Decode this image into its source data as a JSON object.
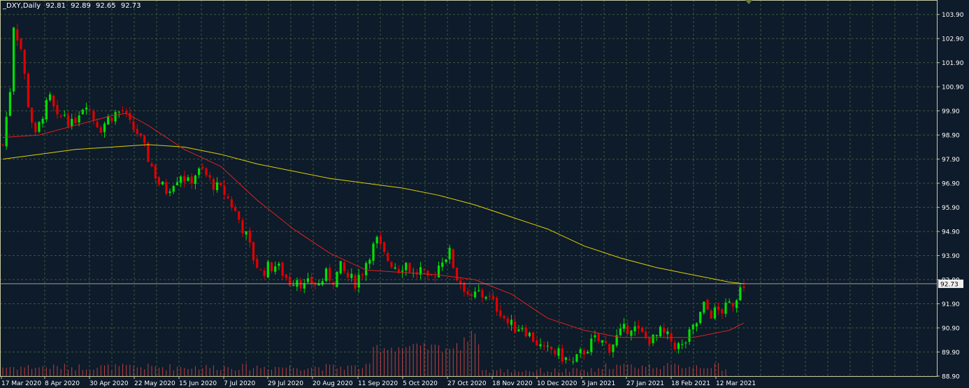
{
  "chart_data": {
    "type": "candlestick",
    "symbol": "_DXY",
    "timeframe": "Daily",
    "ohlc_last": {
      "open": "92.81",
      "high": "92.89",
      "low": "92.65",
      "close": "92.73"
    },
    "current_price_label": "92.73",
    "y_ticks": [
      "103.90",
      "102.90",
      "101.90",
      "100.90",
      "99.90",
      "98.90",
      "97.90",
      "96.90",
      "95.90",
      "94.90",
      "93.90",
      "92.90",
      "91.90",
      "90.90",
      "89.90",
      "88.90"
    ],
    "ylim": [
      88.9,
      104.5
    ],
    "x_tick_labels": [
      "17 Mar 2020",
      "8 Apr 2020",
      "30 Apr 2020",
      "22 May 2020",
      "15 Jun 2020",
      "7 Jul 2020",
      "29 Jul 2020",
      "20 Aug 2020",
      "11 Sep 2020",
      "5 Oct 2020",
      "27 Oct 2020",
      "18 Nov 2020",
      "10 Dec 2020",
      "5 Jan 2021",
      "27 Jan 2021",
      "18 Feb 2021",
      "12 Mar 2021"
    ],
    "close_path": [
      [
        0,
        98.5
      ],
      [
        2,
        100.8
      ],
      [
        3,
        103.5
      ],
      [
        5,
        102.5
      ],
      [
        7,
        100.2
      ],
      [
        9,
        98.8
      ],
      [
        11,
        99.8
      ],
      [
        13,
        100.4
      ],
      [
        15,
        99.5
      ],
      [
        17,
        99.8
      ],
      [
        19,
        99.3
      ],
      [
        21,
        99.9
      ],
      [
        23,
        100.3
      ],
      [
        25,
        99.6
      ],
      [
        27,
        99.2
      ],
      [
        29,
        99.6
      ],
      [
        31,
        99.8
      ],
      [
        33,
        99.9
      ],
      [
        35,
        99.3
      ],
      [
        37,
        99.0
      ],
      [
        39,
        98.3
      ],
      [
        41,
        97.6
      ],
      [
        43,
        96.9
      ],
      [
        45,
        96.6
      ],
      [
        47,
        97.0
      ],
      [
        49,
        97.3
      ],
      [
        51,
        96.9
      ],
      [
        53,
        97.3
      ],
      [
        55,
        97.4
      ],
      [
        57,
        97.0
      ],
      [
        59,
        96.7
      ],
      [
        61,
        96.5
      ],
      [
        63,
        96.0
      ],
      [
        65,
        95.4
      ],
      [
        67,
        94.7
      ],
      [
        69,
        93.8
      ],
      [
        71,
        93.2
      ],
      [
        73,
        93.4
      ],
      [
        75,
        93.5
      ],
      [
        77,
        93.2
      ],
      [
        79,
        92.8
      ],
      [
        81,
        93.0
      ],
      [
        83,
        92.6
      ],
      [
        85,
        92.8
      ],
      [
        87,
        92.7
      ],
      [
        89,
        93.1
      ],
      [
        91,
        92.9
      ],
      [
        93,
        93.4
      ],
      [
        95,
        93.0
      ],
      [
        97,
        92.8
      ],
      [
        99,
        93.3
      ],
      [
        101,
        94.0
      ],
      [
        103,
        94.5
      ],
      [
        105,
        93.9
      ],
      [
        107,
        93.6
      ],
      [
        109,
        93.4
      ],
      [
        111,
        93.6
      ],
      [
        113,
        93.1
      ],
      [
        115,
        93.3
      ],
      [
        117,
        92.8
      ],
      [
        119,
        93.2
      ],
      [
        121,
        93.8
      ],
      [
        123,
        94.0
      ],
      [
        125,
        93.0
      ],
      [
        127,
        92.6
      ],
      [
        129,
        92.4
      ],
      [
        131,
        92.2
      ],
      [
        133,
        92.3
      ],
      [
        135,
        91.9
      ],
      [
        137,
        91.6
      ],
      [
        139,
        91.1
      ],
      [
        141,
        90.9
      ],
      [
        143,
        91.0
      ],
      [
        145,
        90.6
      ],
      [
        147,
        90.3
      ],
      [
        149,
        89.9
      ],
      [
        151,
        90.0
      ],
      [
        153,
        89.8
      ],
      [
        155,
        89.6
      ],
      [
        157,
        89.4
      ],
      [
        159,
        89.8
      ],
      [
        161,
        90.1
      ],
      [
        163,
        90.4
      ],
      [
        165,
        90.3
      ],
      [
        167,
        90.1
      ],
      [
        169,
        90.5
      ],
      [
        171,
        90.8
      ],
      [
        173,
        91.0
      ],
      [
        175,
        90.7
      ],
      [
        177,
        90.5
      ],
      [
        179,
        90.4
      ],
      [
        181,
        90.7
      ],
      [
        183,
        90.5
      ],
      [
        185,
        90.2
      ],
      [
        187,
        90.1
      ],
      [
        189,
        90.6
      ],
      [
        191,
        91.1
      ],
      [
        193,
        91.8
      ],
      [
        195,
        91.5
      ],
      [
        197,
        91.6
      ],
      [
        199,
        91.7
      ],
      [
        201,
        92.0
      ],
      [
        203,
        92.5
      ],
      [
        204,
        92.73
      ]
    ],
    "ma_fast": [
      [
        0,
        98.8
      ],
      [
        10,
        98.9
      ],
      [
        20,
        99.3
      ],
      [
        30,
        99.7
      ],
      [
        34,
        99.8
      ],
      [
        40,
        99.3
      ],
      [
        50,
        98.3
      ],
      [
        60,
        97.6
      ],
      [
        70,
        96.2
      ],
      [
        80,
        95.0
      ],
      [
        90,
        94.0
      ],
      [
        100,
        93.3
      ],
      [
        110,
        93.2
      ],
      [
        120,
        93.1
      ],
      [
        130,
        92.9
      ],
      [
        140,
        92.3
      ],
      [
        150,
        91.3
      ],
      [
        160,
        90.8
      ],
      [
        170,
        90.5
      ],
      [
        180,
        90.5
      ],
      [
        190,
        90.5
      ],
      [
        200,
        90.8
      ],
      [
        204,
        91.1
      ]
    ],
    "ma_slow": [
      [
        0,
        97.9
      ],
      [
        10,
        98.1
      ],
      [
        20,
        98.3
      ],
      [
        30,
        98.4
      ],
      [
        40,
        98.5
      ],
      [
        50,
        98.4
      ],
      [
        60,
        98.1
      ],
      [
        70,
        97.7
      ],
      [
        80,
        97.4
      ],
      [
        90,
        97.1
      ],
      [
        100,
        96.9
      ],
      [
        110,
        96.7
      ],
      [
        120,
        96.4
      ],
      [
        130,
        96.0
      ],
      [
        140,
        95.5
      ],
      [
        150,
        95.0
      ],
      [
        160,
        94.3
      ],
      [
        170,
        93.8
      ],
      [
        180,
        93.4
      ],
      [
        190,
        93.1
      ],
      [
        200,
        92.8
      ],
      [
        204,
        92.73
      ]
    ],
    "colors": {
      "background": "#0d1b2a",
      "grid": "#3c5a3c",
      "bull": "#00e000",
      "bear": "#e00000",
      "ma_fast": "#e02020",
      "ma_slow": "#e0d000",
      "volume": "#c04040",
      "text": "#ffffff",
      "price_label_bg": "#f0f0f0"
    }
  }
}
